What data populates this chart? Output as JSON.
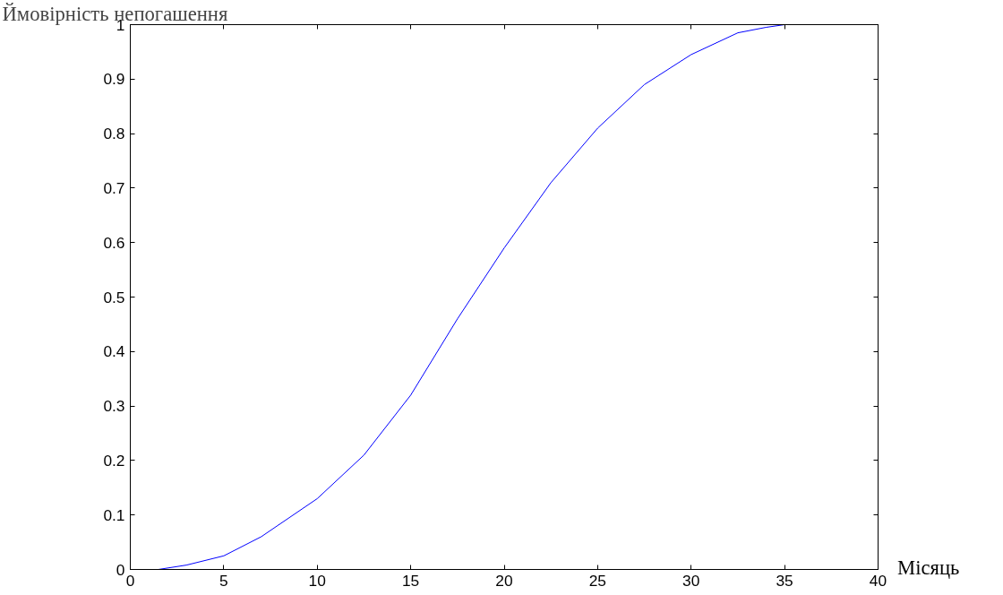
{
  "chart_data": {
    "type": "line",
    "xlabel": "Місяць",
    "ylabel": "Ймовірність непогашення",
    "x": [
      1.5,
      3,
      5,
      7,
      10,
      12.5,
      15,
      17.5,
      20,
      22.5,
      25,
      27.5,
      30,
      32.5,
      34,
      35
    ],
    "series": [
      {
        "color": "#0000ff",
        "values": [
          0,
          0.008,
          0.025,
          0.06,
          0.13,
          0.21,
          0.32,
          0.46,
          0.59,
          0.71,
          0.81,
          0.89,
          0.945,
          0.985,
          0.995,
          1.0
        ]
      }
    ],
    "xlim": [
      0,
      40
    ],
    "ylim": [
      0,
      1
    ],
    "xticks": [
      0,
      5,
      10,
      15,
      20,
      25,
      30,
      35,
      40
    ],
    "yticks": [
      0,
      0.1,
      0.2,
      0.3,
      0.4,
      0.5,
      0.6,
      0.7,
      0.8,
      0.9,
      1
    ],
    "grid": false,
    "marker": "none",
    "line_style": "solid"
  }
}
